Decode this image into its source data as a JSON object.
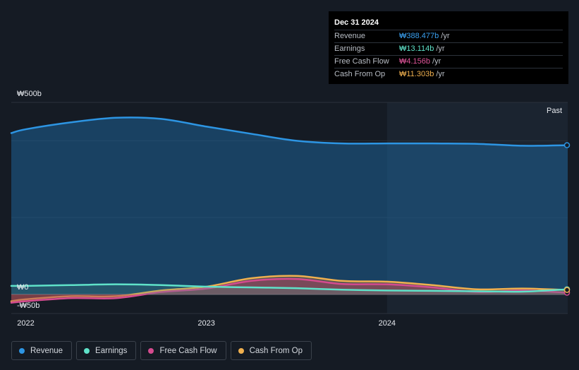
{
  "chart_data": {
    "type": "area",
    "y_tick_labels": [
      "₩500b",
      "₩0",
      "-₩50b"
    ],
    "x_tick_labels": [
      "2022",
      "2023",
      "2024"
    ],
    "ylim": [
      -50,
      500
    ],
    "past_label": "Past",
    "x": [
      2021.92,
      2022.0,
      2022.25,
      2022.5,
      2022.75,
      2023.0,
      2023.25,
      2023.5,
      2023.75,
      2024.0,
      2024.25,
      2024.5,
      2024.75,
      2025.0
    ],
    "series": [
      {
        "name": "Revenue",
        "color": "#2d95e3",
        "values": [
          420,
          430,
          448,
          460,
          457,
          437,
          418,
          400,
          393,
          393,
          393,
          392,
          387,
          388.477
        ]
      },
      {
        "name": "Earnings",
        "color": "#5fe2c9",
        "values": [
          22,
          22,
          24,
          26,
          24,
          20,
          18,
          16,
          12,
          10,
          9,
          8,
          7,
          13.114
        ]
      },
      {
        "name": "Free Cash Flow",
        "color": "#d44b8f",
        "values": [
          -22,
          -18,
          -10,
          -10,
          6,
          15,
          35,
          40,
          27,
          26,
          18,
          6,
          10,
          4.156
        ]
      },
      {
        "name": "Cash From Op",
        "color": "#f0b04f",
        "values": [
          -18,
          -13,
          -5,
          -5,
          10,
          20,
          42,
          48,
          35,
          33,
          24,
          13,
          15,
          11.303
        ]
      }
    ],
    "highlight_start": 2024.0,
    "grid": true
  },
  "tooltip": {
    "date": "Dec 31 2024",
    "rows": [
      {
        "label": "Revenue",
        "value": "₩388.477b",
        "unit": "/yr",
        "color": "#3aa0f0"
      },
      {
        "label": "Earnings",
        "value": "₩13.114b",
        "unit": "/yr",
        "color": "#5fe2c9"
      },
      {
        "label": "Free Cash Flow",
        "value": "₩4.156b",
        "unit": "/yr",
        "color": "#e0559a"
      },
      {
        "label": "Cash From Op",
        "value": "₩11.303b",
        "unit": "/yr",
        "color": "#f0b04f"
      }
    ]
  },
  "legend": [
    {
      "label": "Revenue",
      "color": "#2d95e3"
    },
    {
      "label": "Earnings",
      "color": "#5fe2c9"
    },
    {
      "label": "Free Cash Flow",
      "color": "#d44b8f"
    },
    {
      "label": "Cash From Op",
      "color": "#f0b04f"
    }
  ]
}
